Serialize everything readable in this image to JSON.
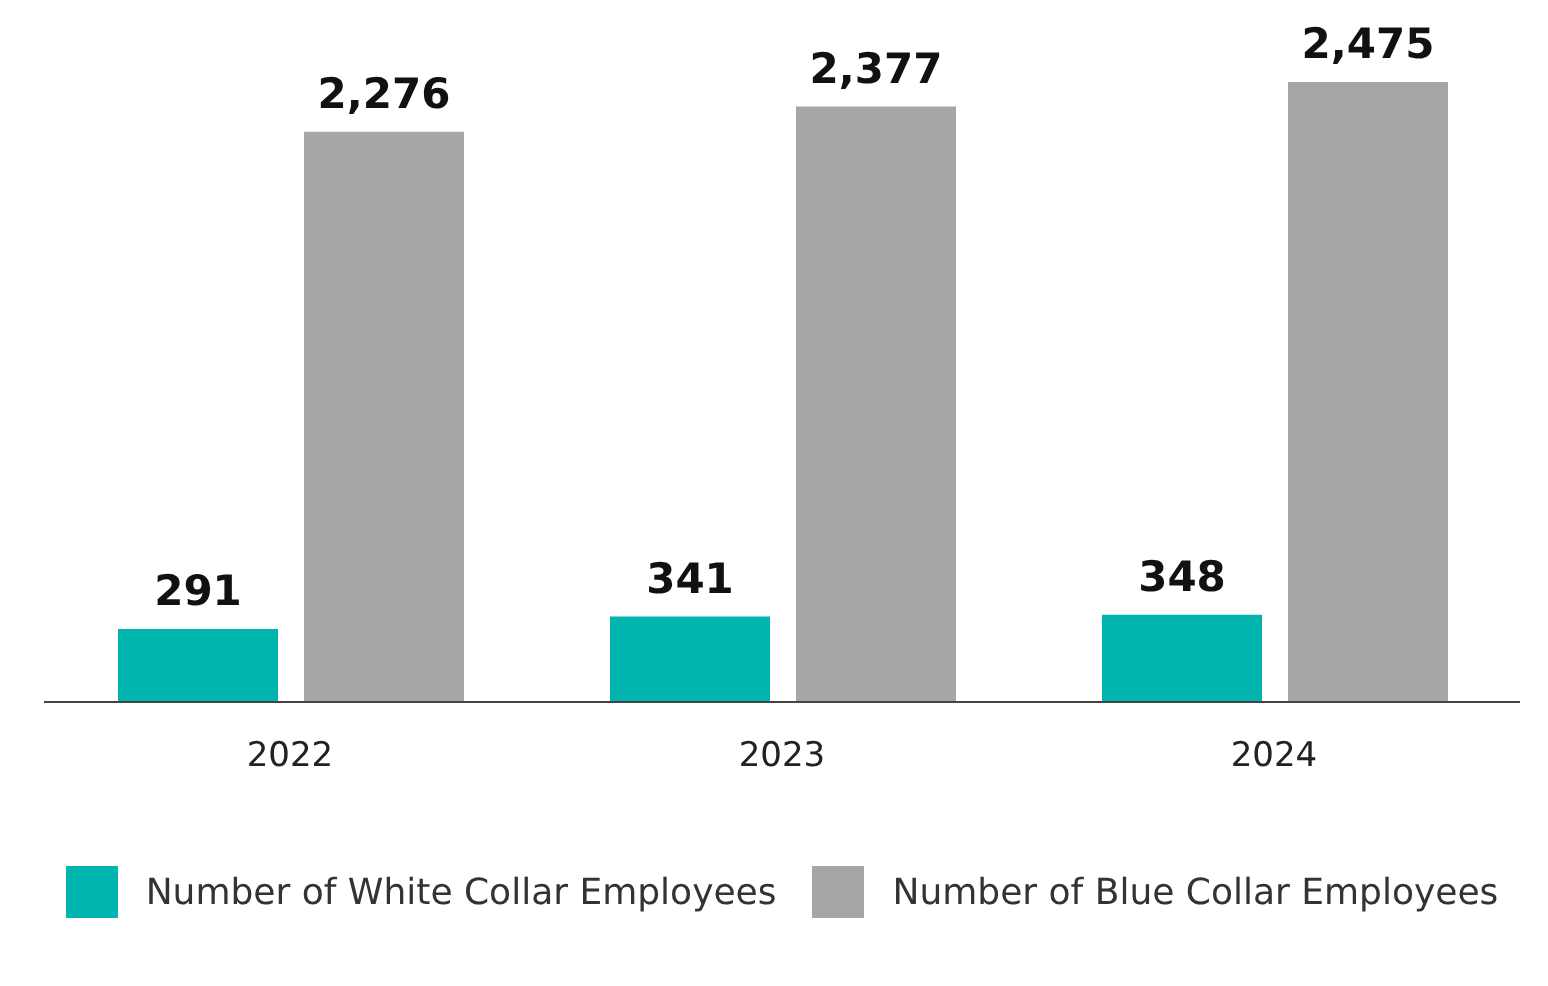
{
  "chart_data": {
    "type": "bar",
    "categories": [
      "2022",
      "2023",
      "2024"
    ],
    "series": [
      {
        "name": "Number of White Collar Employees",
        "color": "#00b5ad",
        "values": [
          291,
          341,
          348
        ],
        "value_labels": [
          "291",
          "341",
          "348"
        ]
      },
      {
        "name": "Number of Blue Collar Employees",
        "color": "#a6a6a6",
        "values": [
          2276,
          2377,
          2475
        ],
        "value_labels": [
          "2,276",
          "2,377",
          "2,475"
        ]
      }
    ],
    "legend": "bottom"
  }
}
